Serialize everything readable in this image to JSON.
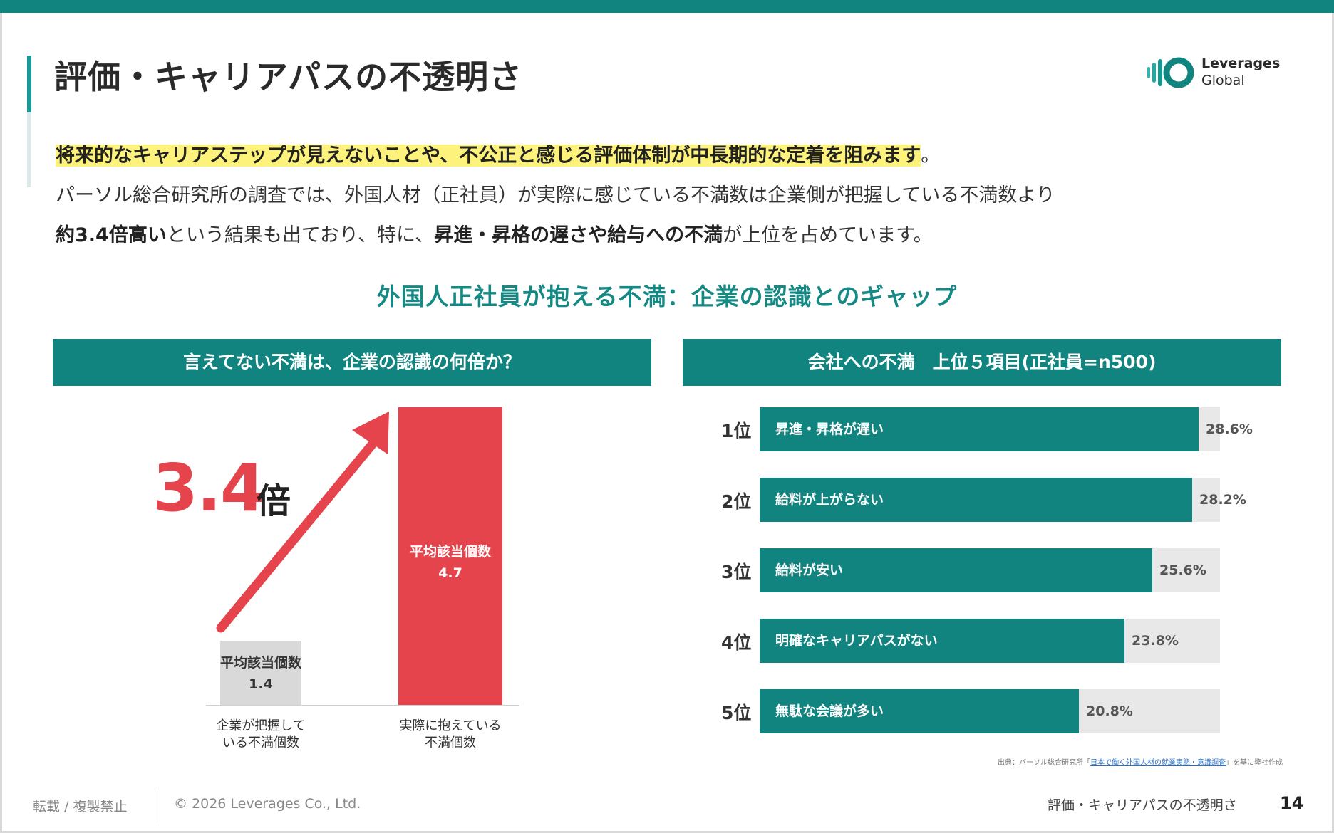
{
  "slide": {
    "title": "評価・キャリアパスの不透明さ",
    "logo": {
      "line1": "Leverages",
      "line2": "Global"
    }
  },
  "lead": {
    "line1_highlight": "将来的なキャリアステップが見えないことや、不公正と感じる評価体制が中長期的な定着を阻みます",
    "line1_tail": "。",
    "line2": "パーソル総合研究所の調査では、外国人材（正社員）が実際に感じている不満数は企業側が把握している不満数より",
    "line3_bold1": "約3.4倍高い",
    "line3_mid": "という結果も出ており、特に、",
    "line3_bold2": "昇進・昇格の遅さや給与への不満",
    "line3_tail": "が上位を占めています。"
  },
  "section_title": "外国人正社員が抱える不満：企業の認識とのギャップ",
  "left_panel": {
    "header": "言えてない不満は、企業の認識の何倍か？",
    "multiplier": "3.4",
    "multiplier_unit": "倍",
    "bar_color": "#e5444c"
  },
  "right_panel": {
    "header": "会社への不満　上位５項目(正社員=n500)",
    "bar_color": "#118480"
  },
  "chart_data": [
    {
      "type": "bar",
      "categories": [
        "企業が把握している不満個数",
        "実際に抱えている不満個数"
      ],
      "category_lines": [
        [
          "企業が把握して",
          "いる不満個数"
        ],
        [
          "実際に抱えている",
          "不満個数"
        ]
      ],
      "values": [
        1.4,
        4.7
      ],
      "value_label": "平均該当個数",
      "value_texts": [
        "1.4",
        "4.7"
      ],
      "ylim": [
        0,
        4.7
      ]
    },
    {
      "type": "bar",
      "orientation": "horizontal",
      "ranks": [
        "1位",
        "2位",
        "3位",
        "4位",
        "5位"
      ],
      "categories": [
        "昇進・昇格が遅い",
        "給料が上がらない",
        "給料が安い",
        "明確なキャリアパスがない",
        "無駄な会議が多い"
      ],
      "values": [
        28.6,
        28.2,
        25.6,
        23.8,
        20.8
      ],
      "value_texts": [
        "28.6%",
        "28.2%",
        "25.6%",
        "23.8%",
        "20.8%"
      ],
      "xlim": [
        0,
        30
      ]
    }
  ],
  "source": {
    "prefix": "出典：パーソル総合研究所「",
    "link": "日本で働く外国人材の就業実態・意識調査",
    "suffix": "」を基に弊社作成"
  },
  "footer": {
    "notice": "転載 / 複製禁止",
    "copyright": "© 2026 Leverages Co., Ltd.",
    "title": "評価・キャリアパスの不透明さ",
    "page": "14"
  }
}
